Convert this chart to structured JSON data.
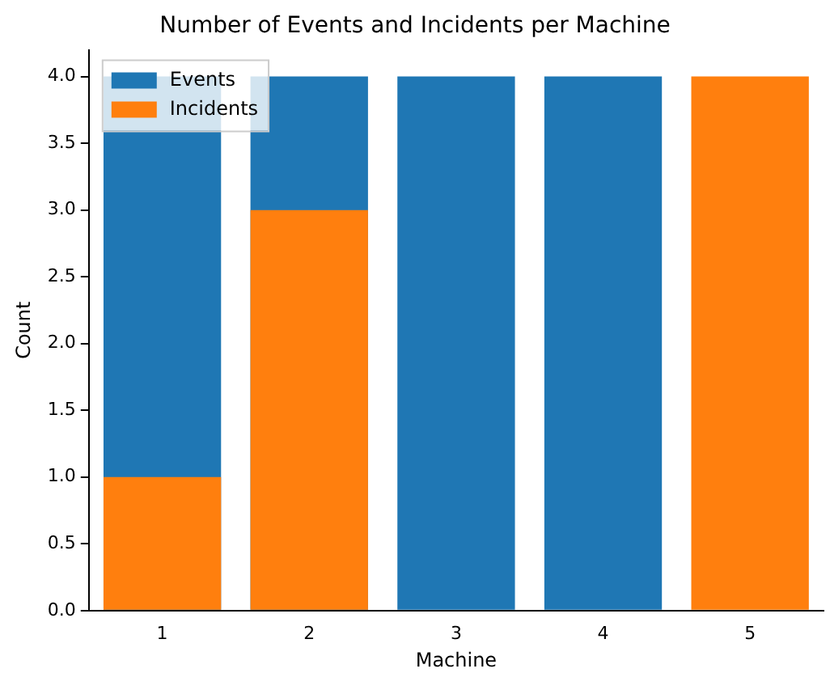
{
  "chart_data": {
    "type": "bar",
    "title": "Number of Events and Incidents per Machine",
    "xlabel": "Machine",
    "ylabel": "Count",
    "categories": [
      "1",
      "2",
      "3",
      "4",
      "5"
    ],
    "series": [
      {
        "name": "Events",
        "color": "#1f77b4",
        "values": [
          4,
          4,
          4,
          4,
          null
        ]
      },
      {
        "name": "Incidents",
        "color": "#ff7f0e",
        "values": [
          1,
          3,
          0,
          0,
          4
        ]
      }
    ],
    "ylim": [
      0,
      4.2
    ],
    "yticks": [
      {
        "value": 0,
        "label": "0.0"
      },
      {
        "value": 0.5,
        "label": "0.5"
      },
      {
        "value": 1,
        "label": "1.0"
      },
      {
        "value": 1.5,
        "label": "1.5"
      },
      {
        "value": 2,
        "label": "2.0"
      },
      {
        "value": 2.5,
        "label": "2.5"
      },
      {
        "value": 3,
        "label": "3.0"
      },
      {
        "value": 3.5,
        "label": "3.5"
      },
      {
        "value": 4,
        "label": "4.0"
      }
    ],
    "grid": false,
    "legend": "top left"
  }
}
